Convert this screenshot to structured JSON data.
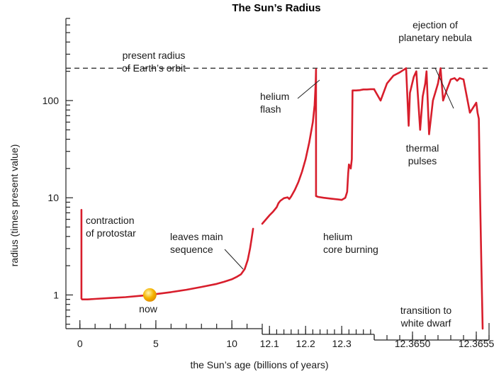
{
  "chart_data": {
    "type": "line",
    "title": "The Sun’s Radius",
    "xlabel": "the Sun’s age (billions of years)",
    "ylabel": "radius (times present value)",
    "y_scale": "log",
    "ylim": [
      0.45,
      700
    ],
    "y_ticks": [
      {
        "value": 1,
        "label": "1"
      },
      {
        "value": 10,
        "label": "10"
      },
      {
        "value": 100,
        "label": "100"
      }
    ],
    "x_segments": [
      {
        "range": [
          -0.5,
          12.0
        ],
        "ticks": [
          {
            "value": 0,
            "label": "0"
          },
          {
            "value": 5,
            "label": "5"
          },
          {
            "value": 10,
            "label": "10"
          }
        ]
      },
      {
        "range": [
          12.08,
          12.39
        ],
        "ticks": [
          {
            "value": 12.1,
            "label": "12.1"
          },
          {
            "value": 12.2,
            "label": "12.2"
          },
          {
            "value": 12.3,
            "label": "12.3"
          }
        ]
      },
      {
        "range": [
          12.3647,
          12.3656
        ],
        "ticks": [
          {
            "value": 12.365,
            "label": "12.3650"
          },
          {
            "value": 12.3655,
            "label": "12.3655"
          }
        ]
      }
    ],
    "reference_line": {
      "y": 215,
      "style": "dashed",
      "label_lines": [
        "present radius",
        "of Earth’s orbit"
      ]
    },
    "series": [
      {
        "segment": 0,
        "x": [
          0.1,
          0.1,
          0.15,
          0.5,
          1,
          2,
          3,
          4,
          4.6,
          5,
          6,
          7,
          8,
          9,
          9.5,
          10,
          10.3,
          10.6,
          10.85,
          11.05,
          11.2,
          11.3,
          11.4
        ],
        "y": [
          7.5,
          0.92,
          0.9,
          0.9,
          0.91,
          0.93,
          0.95,
          0.98,
          1.0,
          1.02,
          1.07,
          1.13,
          1.21,
          1.3,
          1.37,
          1.45,
          1.53,
          1.63,
          1.85,
          2.3,
          3.0,
          3.8,
          4.8
        ]
      },
      {
        "segment": 1,
        "x": [
          12.08,
          12.1,
          12.11,
          12.12,
          12.125,
          12.13,
          12.14,
          12.15,
          12.155,
          12.16,
          12.17,
          12.18,
          12.19,
          12.2,
          12.21,
          12.22,
          12.225,
          12.228,
          12.229,
          12.229,
          12.235,
          12.25,
          12.27,
          12.29,
          12.3,
          12.31,
          12.315,
          12.318,
          12.32,
          12.325,
          12.328,
          12.33,
          12.34,
          12.35,
          12.36,
          12.37,
          12.38,
          12.39
        ],
        "y": [
          5.4,
          6.6,
          7.2,
          8.0,
          8.8,
          9.3,
          9.9,
          10.1,
          9.7,
          10.3,
          12.0,
          14.5,
          18.5,
          25.0,
          37.0,
          60.0,
          90.0,
          150.0,
          210.0,
          10.4,
          10.2,
          10.0,
          9.8,
          9.6,
          9.5,
          10.0,
          11.5,
          18.0,
          22.0,
          20.0,
          25.0,
          127.0,
          127.0,
          128.0,
          130.0,
          130.0,
          131.0,
          131.0
        ]
      },
      {
        "segment": 2,
        "x": [
          12.3647,
          12.36475,
          12.3648,
          12.36485,
          12.3649,
          12.36495,
          12.36497,
          12.36498,
          12.36501,
          12.36503,
          12.36506,
          12.36508,
          12.3651,
          12.36511,
          12.36513,
          12.36516,
          12.3652,
          12.36522,
          12.36524,
          12.36527,
          12.3653,
          12.36533,
          12.36535,
          12.36537,
          12.3654,
          12.36545,
          12.3655,
          12.36551,
          12.36552,
          12.36553,
          12.36554,
          12.36555
        ],
        "y": [
          130.0,
          100.0,
          150.0,
          180.0,
          195.0,
          215.0,
          55.0,
          120.0,
          175.0,
          200.0,
          50.0,
          110.0,
          150.0,
          200.0,
          45.0,
          100.0,
          150.0,
          215.0,
          100.0,
          130.0,
          165.0,
          170.0,
          160.0,
          170.0,
          165.0,
          75.0,
          95.0,
          75.0,
          65.0,
          10.0,
          2.0,
          0.45
        ]
      }
    ],
    "annotations": [
      {
        "lines": [
          "contraction",
          "of protostar"
        ]
      },
      {
        "lines": [
          "leaves main",
          "sequence"
        ]
      },
      {
        "lines": [
          "now"
        ]
      },
      {
        "lines": [
          "helium",
          "flash"
        ]
      },
      {
        "lines": [
          "helium",
          "core burning"
        ]
      },
      {
        "lines": [
          "thermal",
          "pulses"
        ]
      },
      {
        "lines": [
          "ejection of",
          "planetary nebula"
        ]
      },
      {
        "lines": [
          "transition to",
          "white dwarf"
        ]
      }
    ],
    "marker": {
      "x": 4.6,
      "y": 1.0,
      "label": "now"
    },
    "grid": false,
    "colors": {
      "line": "#d81e2c",
      "marker": "#f4b300",
      "axis": "#222222",
      "reference": "#333333"
    }
  }
}
